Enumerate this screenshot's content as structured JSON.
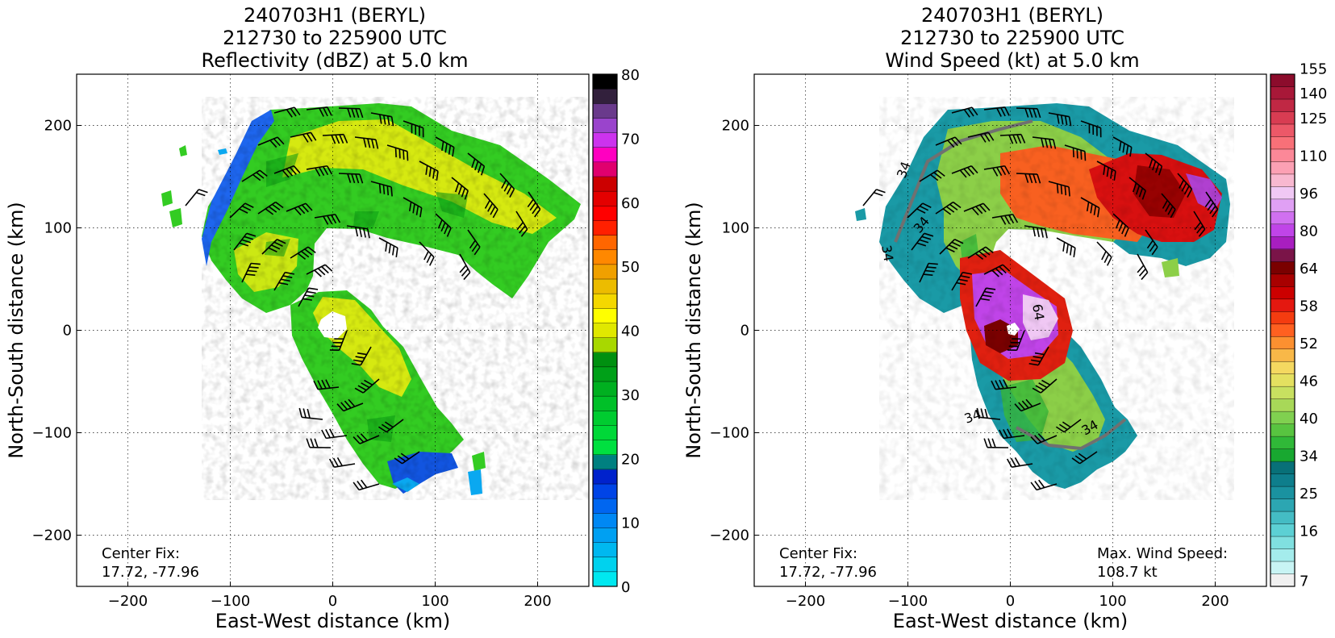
{
  "chart_data": [
    {
      "type": "heatmap",
      "panel": "reflectivity",
      "title_lines": [
        "240703H1 (BERYL)",
        "212730 to 225900 UTC",
        "Reflectivity (dBZ) at 5.0 km"
      ],
      "xlabel": "East-West distance (km)",
      "ylabel": "North-South distance (km)",
      "xlim": [
        -250,
        250
      ],
      "ylim": [
        -250,
        250
      ],
      "xticks": [
        -200,
        -100,
        0,
        100,
        200
      ],
      "yticks": [
        -200,
        -100,
        0,
        100,
        200
      ],
      "xtick_labels": [
        "−200",
        "−100",
        "0",
        "100",
        "200"
      ],
      "ytick_labels": [
        "−200",
        "−100",
        "0",
        "100",
        "200"
      ],
      "grid": "dotted",
      "annotation_lines": [
        "Center Fix:",
        "17.72, -77.96"
      ],
      "colorbar": {
        "levels": [
          0,
          2.5,
          5,
          7.5,
          10,
          12.5,
          15,
          17.5,
          20,
          22.5,
          25,
          27.5,
          30,
          32.5,
          35,
          37.5,
          40,
          42.5,
          45,
          47.5,
          50,
          52.5,
          55,
          57.5,
          60,
          62.5,
          65,
          67.5,
          70,
          72.5,
          75,
          77.5,
          80
        ],
        "colors": [
          "#00e8f0",
          "#00d2ee",
          "#00b8f0",
          "#00a0f2",
          "#0088f4",
          "#0066f0",
          "#0044e6",
          "#0022cc",
          "#008080",
          "#00e040",
          "#00d838",
          "#00cc30",
          "#00c028",
          "#00b020",
          "#00a018",
          "#009010",
          "#a8d800",
          "#e0e800",
          "#ffff00",
          "#f4d800",
          "#ecbc00",
          "#f0a000",
          "#ff8800",
          "#ff6600",
          "#ff2000",
          "#ff0000",
          "#e40000",
          "#cc0000",
          "#e0006e",
          "#ff00c0",
          "#cc33ee",
          "#9a44cc",
          "#6a3a8c",
          "#32203c",
          "#000000"
        ],
        "tick_values": [
          0,
          10,
          20,
          30,
          40,
          50,
          60,
          70,
          80
        ],
        "tick_labels": [
          "0",
          "10",
          "20",
          "30",
          "40",
          "50",
          "60",
          "70",
          "80"
        ]
      }
    },
    {
      "type": "heatmap",
      "panel": "wind_speed",
      "title_lines": [
        "240703H1 (BERYL)",
        "212730 to 225900 UTC",
        "Wind Speed (kt) at 5.0 km"
      ],
      "xlabel": "East-West distance (km)",
      "ylabel": "North-South distance (km)",
      "xlim": [
        -250,
        250
      ],
      "ylim": [
        -250,
        250
      ],
      "xticks": [
        -200,
        -100,
        0,
        100,
        200
      ],
      "yticks": [
        -200,
        -100,
        0,
        100,
        200
      ],
      "xtick_labels": [
        "−200",
        "−100",
        "0",
        "100",
        "200"
      ],
      "ytick_labels": [
        "−200",
        "−100",
        "0",
        "100",
        "200"
      ],
      "grid": "dotted",
      "annotation_lines": [
        "Center Fix:",
        "17.72, -77.96"
      ],
      "max_wind_lines": [
        "Max. Wind Speed:",
        "108.7 kt"
      ],
      "contour_labels": [
        "34",
        "34",
        "34",
        "34",
        "34",
        "64"
      ],
      "colorbar": {
        "colors": [
          "#f0f0f0",
          "#c8f4f4",
          "#a4ecec",
          "#80e0e0",
          "#5cd0d4",
          "#44bcc4",
          "#2ca6b2",
          "#1a92a0",
          "#0e7e8c",
          "#087078",
          "#18a830",
          "#30b838",
          "#58c440",
          "#80d050",
          "#a8d858",
          "#c8e060",
          "#e4e060",
          "#f4d860",
          "#f8b848",
          "#fc9030",
          "#ff6020",
          "#f43c10",
          "#e41810",
          "#cc0000",
          "#a80000",
          "#7a0000",
          "#7a1448",
          "#a81ec0",
          "#c044e8",
          "#d070f0",
          "#e0a0f4",
          "#f0c8f4",
          "#f8b8d0",
          "#fca0b4",
          "#fc8898",
          "#f87078",
          "#ec5868",
          "#d83c52",
          "#c02844",
          "#a81838",
          "#8c0c2c"
        ],
        "tick_labels": [
          "7",
          "16",
          "25",
          "34",
          "40",
          "46",
          "52",
          "58",
          "64",
          "80",
          "96",
          "110",
          "125",
          "140",
          "155"
        ],
        "tick_index": [
          0,
          4,
          7,
          10,
          13,
          16,
          19,
          22,
          25,
          28,
          31,
          34,
          37,
          39,
          41
        ]
      }
    }
  ]
}
